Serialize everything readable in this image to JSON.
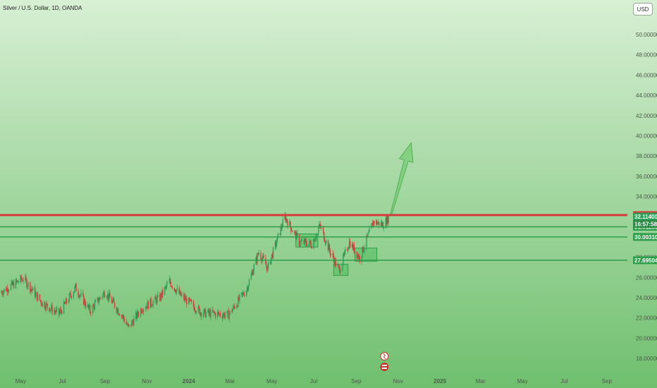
{
  "header": {
    "symbol_title": "Silver / U.S. Dollar, 1D, OANDA"
  },
  "currency": {
    "label": "USD"
  },
  "colors": {
    "bg_top": "#d7efd3",
    "bg_bottom": "#6fbf6e",
    "up": "#2e9e57",
    "down": "#d63a3a",
    "resistance": "#d93a3a",
    "support": "#2e9e4a",
    "arrow": "#7ccf7a"
  },
  "chart_data": {
    "type": "candlestick",
    "ylim": [
      17,
      55
    ],
    "y_ticks": [
      "18.00000",
      "20.00000",
      "22.00000",
      "24.00000",
      "26.00000",
      "28.00000",
      "30.00000",
      "32.00000",
      "34.00000",
      "36.00000",
      "38.00000",
      "40.00000",
      "42.00000",
      "44.00000",
      "46.00000",
      "48.00000",
      "50.00000"
    ],
    "x_ticks": [
      "May",
      "Jul",
      "Sep",
      "Nov",
      "2024",
      "Mar",
      "May",
      "Jul",
      "Sep",
      "Nov",
      "2025",
      "Mar",
      "May",
      "Jul",
      "Sep"
    ],
    "x_range": [
      "2023-04-01",
      "2025-10-01"
    ],
    "x_tick_dates": [
      "2023-05-01",
      "2023-07-01",
      "2023-09-01",
      "2023-11-01",
      "2024-01-01",
      "2024-03-01",
      "2024-05-01",
      "2024-07-01",
      "2024-09-01",
      "2024-11-01",
      "2025-01-01",
      "2025-03-01",
      "2025-05-01",
      "2025-07-01",
      "2025-09-01"
    ],
    "price_path": [
      {
        "date": "2023-04-01",
        "close": 24.5
      },
      {
        "date": "2023-05-05",
        "close": 25.9
      },
      {
        "date": "2023-06-01",
        "close": 23.5
      },
      {
        "date": "2023-06-26",
        "close": 22.4
      },
      {
        "date": "2023-07-20",
        "close": 25.0
      },
      {
        "date": "2023-08-10",
        "close": 22.7
      },
      {
        "date": "2023-09-01",
        "close": 24.6
      },
      {
        "date": "2023-09-28",
        "close": 22.0
      },
      {
        "date": "2023-10-05",
        "close": 21.0
      },
      {
        "date": "2023-10-25",
        "close": 23.0
      },
      {
        "date": "2023-11-20",
        "close": 24.0
      },
      {
        "date": "2023-12-04",
        "close": 25.6
      },
      {
        "date": "2023-12-20",
        "close": 24.2
      },
      {
        "date": "2024-01-20",
        "close": 22.5
      },
      {
        "date": "2024-02-28",
        "close": 22.3
      },
      {
        "date": "2024-03-25",
        "close": 24.8
      },
      {
        "date": "2024-04-12",
        "close": 28.5
      },
      {
        "date": "2024-04-25",
        "close": 26.9
      },
      {
        "date": "2024-05-20",
        "close": 32.0
      },
      {
        "date": "2024-06-10",
        "close": 29.5
      },
      {
        "date": "2024-06-28",
        "close": 29.3
      },
      {
        "date": "2024-07-10",
        "close": 31.1
      },
      {
        "date": "2024-07-25",
        "close": 28.5
      },
      {
        "date": "2024-08-07",
        "close": 26.7
      },
      {
        "date": "2024-08-22",
        "close": 29.5
      },
      {
        "date": "2024-09-06",
        "close": 27.9
      },
      {
        "date": "2024-09-26",
        "close": 31.5
      },
      {
        "date": "2024-10-10",
        "close": 31.2
      },
      {
        "date": "2024-10-20",
        "close": 32.1
      }
    ],
    "levels": [
      {
        "label": "32.16494",
        "value": 32.165,
        "kind": "resistance"
      },
      {
        "label": "31.01289",
        "value": 31.0,
        "kind": "support"
      },
      {
        "label": "30.00310",
        "value": 30.0,
        "kind": "support"
      },
      {
        "label": "27.69504",
        "value": 27.7,
        "kind": "support"
      }
    ],
    "last_price": {
      "label": "32.11400",
      "value": 32.114
    },
    "countdown": {
      "label": "16:57:58"
    },
    "zones": [
      {
        "x0": "2024-06-05",
        "x1": "2024-07-07",
        "y0": 29.0,
        "y1": 30.3
      },
      {
        "x0": "2024-07-30",
        "x1": "2024-08-20",
        "y0": 26.2,
        "y1": 27.3
      },
      {
        "x0": "2024-08-30",
        "x1": "2024-10-01",
        "y0": 27.6,
        "y1": 28.9
      }
    ],
    "projection_arrow": {
      "from_date": "2024-10-22",
      "from_value": 32.3,
      "to_date": "2024-11-20",
      "to_value": 39.3
    },
    "event_icons": [
      "earnings-icon",
      "flag-icon"
    ]
  }
}
